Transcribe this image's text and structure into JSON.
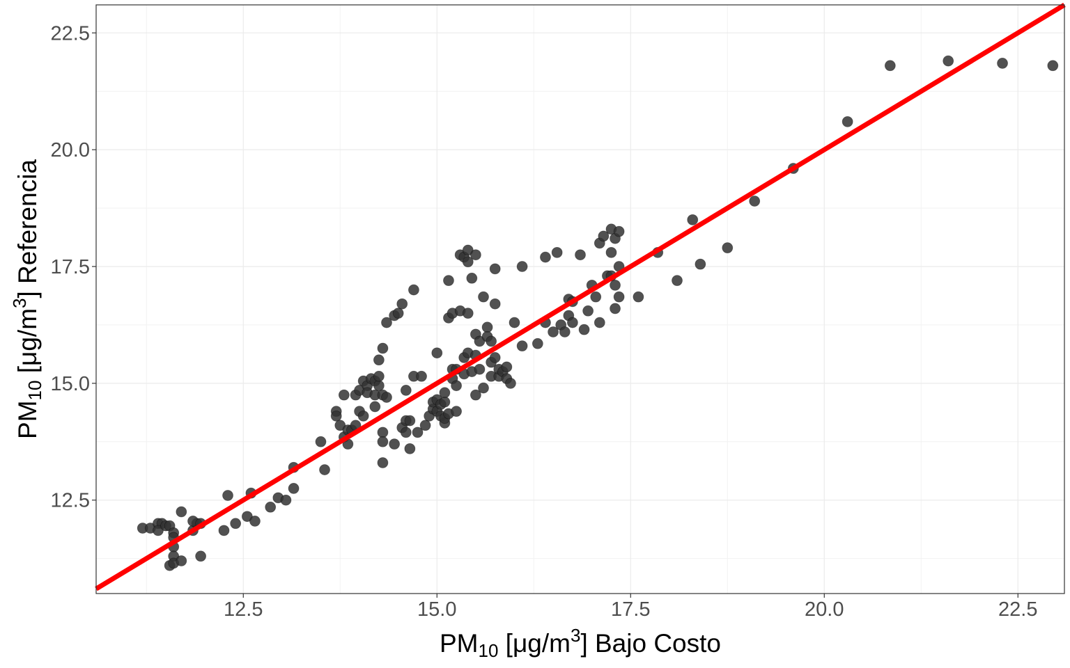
{
  "chart_data": {
    "type": "scatter",
    "title": "",
    "xlabel": {
      "main": "PM",
      "sub": "10",
      "unit_open": " [μg/m",
      "sup": "3",
      "unit_close": "] Bajo Costo"
    },
    "ylabel": {
      "main": "PM",
      "sub": "10",
      "unit_open": " [μg/m",
      "sup": "3",
      "unit_close": "] Referencia"
    },
    "xlim": [
      10.6,
      23.1
    ],
    "ylim": [
      10.5,
      23.1
    ],
    "x_ticks": [
      12.5,
      15.0,
      17.5,
      20.0,
      22.5
    ],
    "y_ticks": [
      12.5,
      15.0,
      17.5,
      20.0,
      22.5
    ],
    "x_tick_labels": [
      "12.5",
      "15.0",
      "17.5",
      "20.0",
      "22.5"
    ],
    "y_tick_labels": [
      "12.5",
      "15.0",
      "17.5",
      "20.0",
      "22.5"
    ],
    "grid": true,
    "point_color": "#333333",
    "line_color": "#ff0000",
    "reference_line": {
      "intercept": 0,
      "slope": 1
    },
    "points": [
      [
        11.2,
        11.9
      ],
      [
        11.3,
        11.9
      ],
      [
        11.4,
        12.0
      ],
      [
        11.45,
        12.0
      ],
      [
        11.4,
        11.85
      ],
      [
        11.5,
        11.95
      ],
      [
        11.55,
        11.95
      ],
      [
        11.6,
        11.8
      ],
      [
        11.6,
        11.7
      ],
      [
        11.6,
        11.5
      ],
      [
        11.6,
        11.3
      ],
      [
        11.55,
        11.1
      ],
      [
        11.6,
        11.15
      ],
      [
        11.7,
        11.2
      ],
      [
        11.7,
        12.25
      ],
      [
        11.85,
        11.85
      ],
      [
        11.9,
        12.0
      ],
      [
        11.85,
        12.05
      ],
      [
        11.95,
        11.3
      ],
      [
        11.95,
        12.0
      ],
      [
        12.25,
        11.85
      ],
      [
        12.3,
        12.6
      ],
      [
        12.4,
        12.0
      ],
      [
        12.55,
        12.15
      ],
      [
        12.6,
        12.65
      ],
      [
        12.65,
        12.05
      ],
      [
        12.85,
        12.35
      ],
      [
        12.95,
        12.55
      ],
      [
        13.05,
        12.5
      ],
      [
        13.15,
        13.2
      ],
      [
        13.15,
        12.75
      ],
      [
        13.5,
        13.75
      ],
      [
        13.55,
        13.15
      ],
      [
        13.7,
        14.4
      ],
      [
        13.7,
        14.3
      ],
      [
        13.75,
        14.1
      ],
      [
        13.8,
        13.85
      ],
      [
        13.8,
        14.75
      ],
      [
        13.85,
        14.0
      ],
      [
        13.85,
        13.7
      ],
      [
        13.9,
        14.0
      ],
      [
        13.95,
        14.75
      ],
      [
        13.95,
        14.1
      ],
      [
        14.0,
        14.4
      ],
      [
        14.0,
        14.85
      ],
      [
        14.05,
        15.05
      ],
      [
        14.05,
        14.3
      ],
      [
        14.1,
        14.95
      ],
      [
        14.1,
        14.8
      ],
      [
        14.15,
        15.1
      ],
      [
        14.2,
        15.05
      ],
      [
        14.2,
        14.75
      ],
      [
        14.2,
        14.5
      ],
      [
        14.25,
        14.95
      ],
      [
        14.25,
        15.5
      ],
      [
        14.25,
        15.15
      ],
      [
        14.3,
        15.75
      ],
      [
        14.3,
        14.75
      ],
      [
        14.3,
        13.95
      ],
      [
        14.3,
        13.3
      ],
      [
        14.3,
        13.75
      ],
      [
        14.35,
        14.7
      ],
      [
        14.35,
        16.3
      ],
      [
        14.45,
        16.45
      ],
      [
        14.45,
        13.7
      ],
      [
        14.5,
        16.5
      ],
      [
        14.55,
        16.7
      ],
      [
        14.55,
        14.05
      ],
      [
        14.6,
        13.95
      ],
      [
        14.6,
        14.2
      ],
      [
        14.6,
        14.85
      ],
      [
        14.65,
        13.6
      ],
      [
        14.65,
        14.2
      ],
      [
        14.7,
        15.15
      ],
      [
        14.7,
        17.0
      ],
      [
        14.75,
        13.95
      ],
      [
        14.8,
        15.15
      ],
      [
        14.85,
        14.1
      ],
      [
        14.9,
        14.3
      ],
      [
        14.95,
        14.45
      ],
      [
        14.95,
        14.6
      ],
      [
        15.0,
        14.65
      ],
      [
        15.0,
        14.4
      ],
      [
        15.0,
        15.65
      ],
      [
        15.05,
        14.55
      ],
      [
        15.05,
        14.3
      ],
      [
        15.1,
        14.15
      ],
      [
        15.1,
        14.25
      ],
      [
        15.1,
        14.6
      ],
      [
        15.1,
        14.8
      ],
      [
        15.15,
        14.35
      ],
      [
        15.15,
        16.4
      ],
      [
        15.15,
        17.2
      ],
      [
        15.2,
        15.1
      ],
      [
        15.2,
        15.3
      ],
      [
        15.2,
        16.5
      ],
      [
        15.25,
        14.4
      ],
      [
        15.25,
        14.95
      ],
      [
        15.25,
        15.3
      ],
      [
        15.3,
        16.55
      ],
      [
        15.3,
        17.75
      ],
      [
        15.35,
        17.7
      ],
      [
        15.35,
        15.2
      ],
      [
        15.35,
        15.55
      ],
      [
        15.4,
        16.5
      ],
      [
        15.4,
        17.6
      ],
      [
        15.4,
        17.85
      ],
      [
        15.4,
        15.65
      ],
      [
        15.45,
        15.25
      ],
      [
        15.45,
        17.25
      ],
      [
        15.5,
        17.75
      ],
      [
        15.5,
        16.05
      ],
      [
        15.5,
        15.6
      ],
      [
        15.5,
        14.75
      ],
      [
        15.55,
        15.3
      ],
      [
        15.55,
        15.9
      ],
      [
        15.6,
        14.9
      ],
      [
        15.6,
        16.85
      ],
      [
        15.65,
        16.2
      ],
      [
        15.65,
        16.0
      ],
      [
        15.7,
        15.9
      ],
      [
        15.7,
        15.45
      ],
      [
        15.7,
        15.15
      ],
      [
        15.75,
        15.55
      ],
      [
        15.75,
        16.7
      ],
      [
        15.75,
        17.45
      ],
      [
        15.8,
        15.15
      ],
      [
        15.8,
        15.3
      ],
      [
        15.85,
        15.25
      ],
      [
        15.9,
        15.35
      ],
      [
        15.9,
        15.1
      ],
      [
        15.95,
        15.0
      ],
      [
        16.0,
        16.3
      ],
      [
        16.1,
        17.5
      ],
      [
        16.1,
        15.8
      ],
      [
        16.3,
        15.85
      ],
      [
        16.4,
        16.3
      ],
      [
        16.4,
        17.7
      ],
      [
        16.5,
        16.1
      ],
      [
        16.55,
        17.8
      ],
      [
        16.6,
        16.25
      ],
      [
        16.65,
        16.1
      ],
      [
        16.7,
        16.45
      ],
      [
        16.7,
        16.8
      ],
      [
        16.75,
        16.75
      ],
      [
        16.75,
        16.3
      ],
      [
        16.85,
        17.75
      ],
      [
        16.9,
        16.15
      ],
      [
        16.95,
        16.55
      ],
      [
        17.0,
        17.1
      ],
      [
        17.05,
        16.85
      ],
      [
        17.1,
        16.3
      ],
      [
        17.1,
        18.0
      ],
      [
        17.15,
        18.15
      ],
      [
        17.2,
        17.3
      ],
      [
        17.25,
        17.3
      ],
      [
        17.25,
        18.3
      ],
      [
        17.25,
        17.8
      ],
      [
        17.3,
        18.1
      ],
      [
        17.3,
        17.1
      ],
      [
        17.3,
        16.6
      ],
      [
        17.35,
        17.5
      ],
      [
        17.35,
        18.25
      ],
      [
        17.35,
        16.85
      ],
      [
        17.6,
        16.85
      ],
      [
        17.85,
        17.8
      ],
      [
        18.1,
        17.2
      ],
      [
        18.3,
        18.5
      ],
      [
        18.4,
        17.55
      ],
      [
        18.75,
        17.9
      ],
      [
        19.1,
        18.9
      ],
      [
        19.6,
        19.6
      ],
      [
        20.3,
        20.6
      ],
      [
        20.85,
        21.8
      ],
      [
        21.6,
        21.9
      ],
      [
        22.3,
        21.85
      ],
      [
        22.95,
        21.8
      ]
    ]
  }
}
